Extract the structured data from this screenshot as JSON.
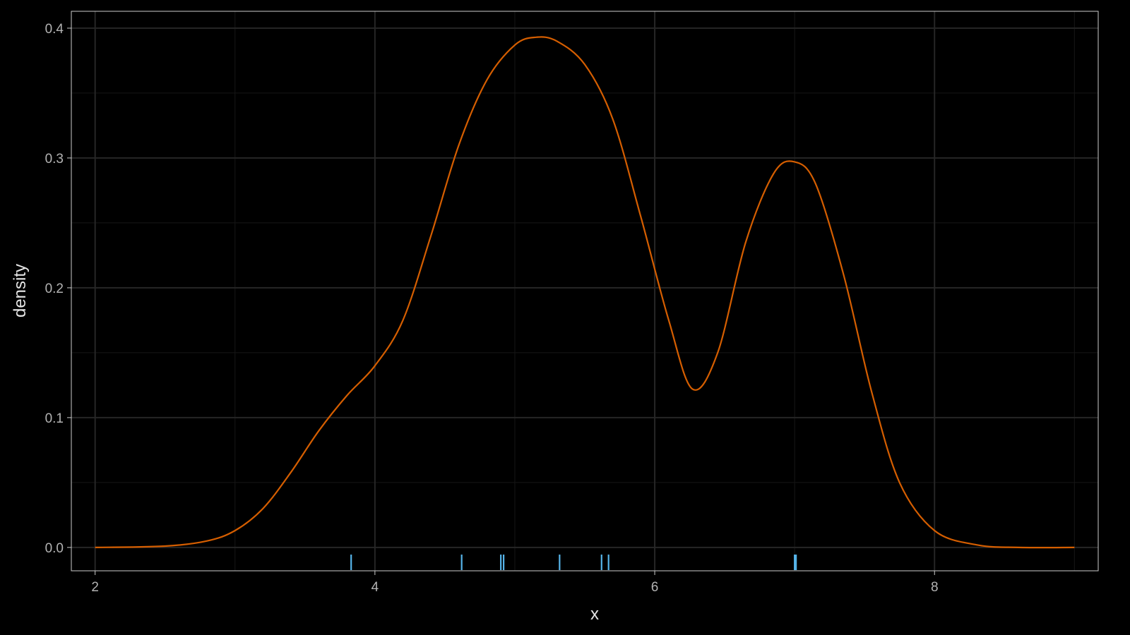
{
  "chart_data": {
    "type": "line",
    "title": "",
    "xlabel": "x",
    "ylabel": "density",
    "xlim": [
      1.83,
      9.17
    ],
    "ylim": [
      -0.018,
      0.413
    ],
    "x_ticks": [
      2,
      4,
      6,
      8
    ],
    "x_tick_labels": [
      "2",
      "4",
      "6",
      "8"
    ],
    "y_ticks": [
      0.0,
      0.1,
      0.2,
      0.3,
      0.4
    ],
    "y_tick_labels": [
      "0.0",
      "0.1",
      "0.2",
      "0.3",
      "0.4"
    ],
    "grid": true,
    "legend": "none",
    "series": [
      {
        "kind": "density",
        "color": "#d55e00",
        "x": [
          2.0,
          2.5,
          2.8,
          3.0,
          3.2,
          3.4,
          3.6,
          3.8,
          4.0,
          4.2,
          4.4,
          4.6,
          4.8,
          5.0,
          5.15,
          5.3,
          5.5,
          5.7,
          5.9,
          6.1,
          6.27,
          6.45,
          6.65,
          6.85,
          7.0,
          7.15,
          7.35,
          7.55,
          7.75,
          8.0,
          8.3,
          8.6,
          9.0
        ],
        "y": [
          0.0,
          0.001,
          0.005,
          0.013,
          0.03,
          0.058,
          0.09,
          0.117,
          0.14,
          0.175,
          0.24,
          0.31,
          0.36,
          0.387,
          0.393,
          0.39,
          0.372,
          0.33,
          0.255,
          0.175,
          0.122,
          0.15,
          0.235,
          0.288,
          0.297,
          0.28,
          0.21,
          0.12,
          0.05,
          0.013,
          0.002,
          0.0,
          0.0
        ]
      },
      {
        "kind": "rug",
        "color": "#56b4e9",
        "x": [
          3.83,
          4.62,
          4.9,
          4.92,
          5.32,
          5.62,
          5.67,
          7.0,
          7.01
        ]
      }
    ]
  }
}
